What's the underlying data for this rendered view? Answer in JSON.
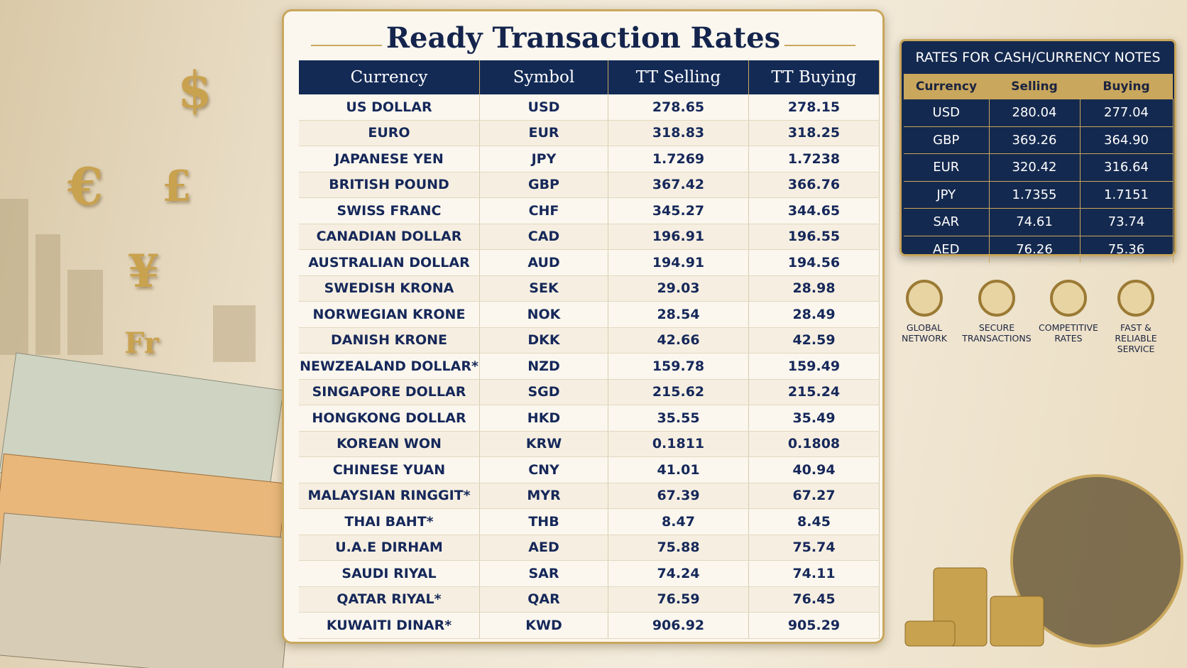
{
  "title": "Ready Transaction Rates",
  "table": {
    "columns": [
      "Currency",
      "Symbol",
      "TT Selling",
      "TT Buying"
    ],
    "rows": [
      [
        "US DOLLAR",
        "USD",
        "278.65",
        "278.15"
      ],
      [
        "EURO",
        "EUR",
        "318.83",
        "318.25"
      ],
      [
        "JAPANESE YEN",
        "JPY",
        "1.7269",
        "1.7238"
      ],
      [
        "BRITISH POUND",
        "GBP",
        "367.42",
        "366.76"
      ],
      [
        "SWISS FRANC",
        "CHF",
        "345.27",
        "344.65"
      ],
      [
        "CANADIAN DOLLAR",
        "CAD",
        "196.91",
        "196.55"
      ],
      [
        "AUSTRALIAN DOLLAR",
        "AUD",
        "194.91",
        "194.56"
      ],
      [
        "SWEDISH KRONA",
        "SEK",
        "29.03",
        "28.98"
      ],
      [
        "NORWEGIAN KRONE",
        "NOK",
        "28.54",
        "28.49"
      ],
      [
        "DANISH KRONE",
        "DKK",
        "42.66",
        "42.59"
      ],
      [
        "NEWZEALAND DOLLAR*",
        "NZD",
        "159.78",
        "159.49"
      ],
      [
        "SINGAPORE DOLLAR",
        "SGD",
        "215.62",
        "215.24"
      ],
      [
        "HONGKONG DOLLAR",
        "HKD",
        "35.55",
        "35.49"
      ],
      [
        "KOREAN WON",
        "KRW",
        "0.1811",
        "0.1808"
      ],
      [
        "CHINESE YUAN",
        "CNY",
        "41.01",
        "40.94"
      ],
      [
        "MALAYSIAN RINGGIT*",
        "MYR",
        "67.39",
        "67.27"
      ],
      [
        "THAI BAHT*",
        "THB",
        "8.47",
        "8.45"
      ],
      [
        "U.A.E DIRHAM",
        "AED",
        "75.88",
        "75.74"
      ],
      [
        "SAUDI RIYAL",
        "SAR",
        "74.24",
        "74.11"
      ],
      [
        "QATAR RIYAL*",
        "QAR",
        "76.59",
        "76.45"
      ],
      [
        "KUWAITI DINAR*",
        "KWD",
        "906.92",
        "905.29"
      ]
    ]
  },
  "cash": {
    "title": "RATES FOR CASH/CURRENCY NOTES",
    "columns": [
      "Currency",
      "Selling",
      "Buying"
    ],
    "rows": [
      [
        "USD",
        "280.04",
        "277.04"
      ],
      [
        "GBP",
        "369.26",
        "364.90"
      ],
      [
        "EUR",
        "320.42",
        "316.64"
      ],
      [
        "JPY",
        "1.7355",
        "1.7151"
      ],
      [
        "SAR",
        "74.61",
        "73.74"
      ],
      [
        "AED",
        "76.26",
        "75.36"
      ]
    ]
  },
  "features": [
    "GLOBAL NETWORK",
    "SECURE TRANSACTIONS",
    "COMPETITIVE RATES",
    "FAST & RELIABLE SERVICE"
  ],
  "decor_symbols": [
    "$",
    "€",
    "£",
    "¥",
    "Fr"
  ]
}
